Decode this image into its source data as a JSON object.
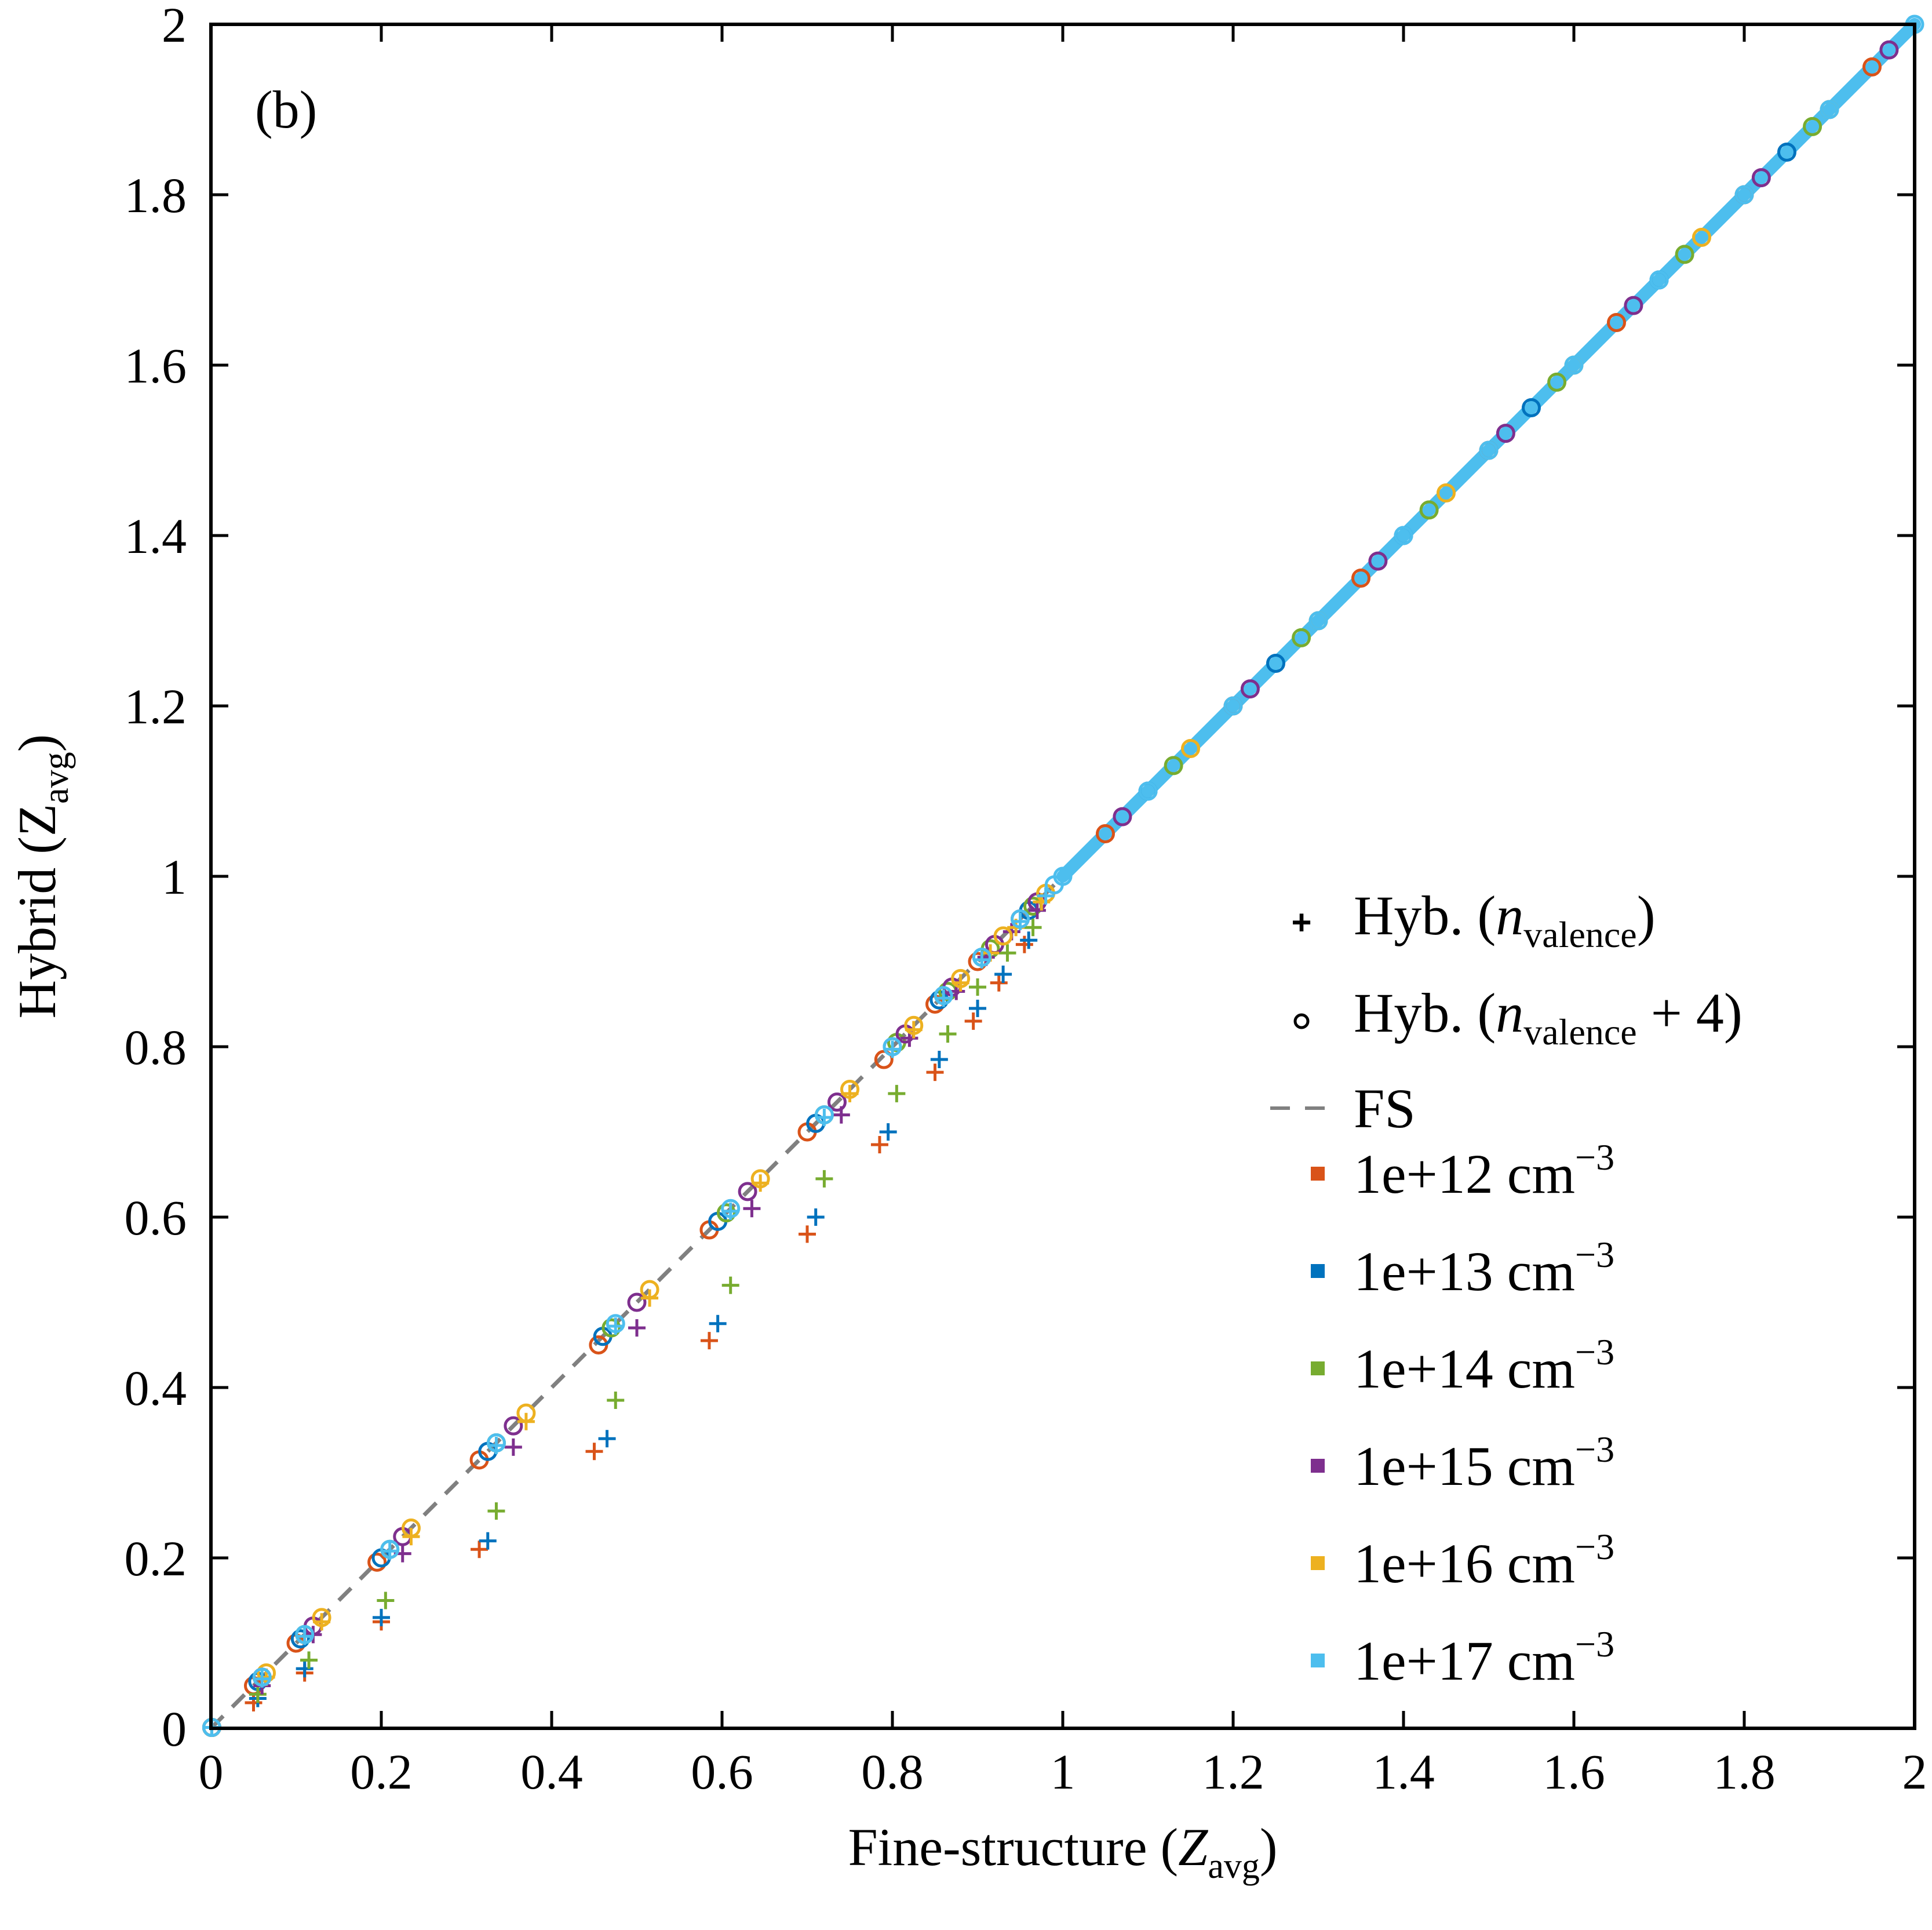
{
  "chart_data": {
    "type": "scatter",
    "panel_label": "(b)",
    "xlabel": {
      "main": "Fine-structure (",
      "sym": "Z",
      "sub": "avg",
      "close": ")"
    },
    "ylabel": {
      "main": "Hybrid (",
      "sym": "Z",
      "sub": "avg",
      "close": ")"
    },
    "xlim": [
      0,
      2
    ],
    "ylim": [
      0,
      2
    ],
    "xticks": [
      0,
      0.2,
      0.4,
      0.6,
      0.8,
      1,
      1.2,
      1.4,
      1.6,
      1.8,
      2
    ],
    "yticks": [
      0,
      0.2,
      0.4,
      0.6,
      0.8,
      1,
      1.2,
      1.4,
      1.6,
      1.8,
      2
    ],
    "xtick_labels": [
      "0",
      "0.2",
      "0.4",
      "0.6",
      "0.8",
      "1",
      "1.2",
      "1.4",
      "1.6",
      "1.8",
      "2"
    ],
    "ytick_labels": [
      "0",
      "0.2",
      "0.4",
      "0.6",
      "0.8",
      "1",
      "1.2",
      "1.4",
      "1.6",
      "1.8",
      "2"
    ],
    "legend": {
      "position": "right-middle",
      "marker_entries": [
        {
          "marker": "plus",
          "text": "Hyb. (",
          "sym": "n",
          "sub": "valence",
          "tail": ")"
        },
        {
          "marker": "circle",
          "text": "Hyb. (",
          "sym": "n",
          "sub": "valence",
          "tail": " + 4)"
        }
      ],
      "line_entry": {
        "text": "FS",
        "color": "#808080"
      },
      "series_entries": [
        {
          "text": "1e+12 cm",
          "sup": "−3",
          "color": "#D95319"
        },
        {
          "text": "1e+13 cm",
          "sup": "−3",
          "color": "#0072BD"
        },
        {
          "text": "1e+14 cm",
          "sup": "−3",
          "color": "#77AC30"
        },
        {
          "text": "1e+15 cm",
          "sup": "−3",
          "color": "#7E2F8E"
        },
        {
          "text": "1e+16 cm",
          "sup": "−3",
          "color": "#EDB120"
        },
        {
          "text": "1e+17 cm",
          "sup": "−3",
          "color": "#4DBEEE"
        }
      ]
    },
    "reference_line": {
      "name": "FS",
      "style": "dashed",
      "color": "#808080",
      "x": [
        0,
        2
      ],
      "y": [
        0,
        2
      ]
    },
    "series": [
      {
        "name": "1e+12 cm−3",
        "color": "#D95319",
        "plus": {
          "x": [
            0.001,
            0.05,
            0.11,
            0.2,
            0.315,
            0.45,
            0.585,
            0.7,
            0.785,
            0.85,
            0.895,
            0.925,
            0.955
          ],
          "y": [
            0.001,
            0.03,
            0.065,
            0.125,
            0.21,
            0.325,
            0.455,
            0.58,
            0.685,
            0.77,
            0.83,
            0.875,
            0.92
          ]
        },
        "circle": {
          "x": [
            0.001,
            0.05,
            0.1,
            0.195,
            0.315,
            0.455,
            0.585,
            0.7,
            0.79,
            0.85,
            0.9,
            0.95,
            1.05,
            1.2,
            1.35,
            1.5,
            1.65,
            1.8,
            1.95
          ],
          "y": [
            0.001,
            0.05,
            0.1,
            0.195,
            0.315,
            0.45,
            0.585,
            0.7,
            0.785,
            0.85,
            0.9,
            0.95,
            1.05,
            1.2,
            1.35,
            1.5,
            1.65,
            1.8,
            1.95
          ]
        }
      },
      {
        "name": "1e+13 cm−3",
        "color": "#0072BD",
        "plus": {
          "x": [
            0.001,
            0.055,
            0.11,
            0.2,
            0.325,
            0.465,
            0.595,
            0.71,
            0.795,
            0.855,
            0.9,
            0.93,
            0.96
          ],
          "y": [
            0.001,
            0.035,
            0.07,
            0.13,
            0.22,
            0.34,
            0.475,
            0.6,
            0.7,
            0.785,
            0.845,
            0.885,
            0.925
          ]
        },
        "circle": {
          "x": [
            0.001,
            0.055,
            0.105,
            0.2,
            0.325,
            0.46,
            0.595,
            0.71,
            0.8,
            0.855,
            0.905,
            0.96,
            1.1,
            1.25,
            1.4,
            1.55,
            1.7,
            1.85
          ],
          "y": [
            0.001,
            0.055,
            0.105,
            0.2,
            0.325,
            0.46,
            0.595,
            0.71,
            0.8,
            0.855,
            0.905,
            0.96,
            1.1,
            1.25,
            1.4,
            1.55,
            1.7,
            1.85
          ]
        }
      },
      {
        "name": "1e+14 cm−3",
        "color": "#77AC30",
        "plus": {
          "x": [
            0.001,
            0.055,
            0.115,
            0.205,
            0.335,
            0.475,
            0.61,
            0.72,
            0.805,
            0.865,
            0.9,
            0.935,
            0.965
          ],
          "y": [
            0.001,
            0.04,
            0.08,
            0.15,
            0.255,
            0.385,
            0.52,
            0.645,
            0.745,
            0.815,
            0.87,
            0.91,
            0.94
          ]
        },
        "circle": {
          "x": [
            0.001,
            0.06,
            0.11,
            0.21,
            0.335,
            0.47,
            0.605,
            0.72,
            0.805,
            0.865,
            0.915,
            0.965,
            1.13,
            1.28,
            1.43,
            1.58,
            1.73,
            1.88
          ],
          "y": [
            0.001,
            0.06,
            0.11,
            0.21,
            0.335,
            0.47,
            0.605,
            0.72,
            0.805,
            0.865,
            0.915,
            0.965,
            1.13,
            1.28,
            1.43,
            1.58,
            1.73,
            1.88
          ]
        }
      },
      {
        "name": "1e+15 cm−3",
        "color": "#7E2F8E",
        "plus": {
          "x": [
            0.001,
            0.06,
            0.12,
            0.225,
            0.355,
            0.5,
            0.635,
            0.74,
            0.82,
            0.875,
            0.91,
            0.94,
            0.97
          ],
          "y": [
            0.001,
            0.05,
            0.11,
            0.205,
            0.33,
            0.47,
            0.61,
            0.72,
            0.81,
            0.865,
            0.905,
            0.935,
            0.96
          ]
        },
        "circle": {
          "x": [
            0.001,
            0.06,
            0.12,
            0.225,
            0.355,
            0.5,
            0.63,
            0.735,
            0.815,
            0.87,
            0.92,
            0.97,
            1.07,
            1.22,
            1.37,
            1.52,
            1.67,
            1.82,
            1.97
          ],
          "y": [
            0.001,
            0.06,
            0.12,
            0.225,
            0.355,
            0.5,
            0.63,
            0.735,
            0.815,
            0.87,
            0.92,
            0.97,
            1.07,
            1.22,
            1.37,
            1.52,
            1.67,
            1.82,
            1.97
          ]
        }
      },
      {
        "name": "1e+16 cm−3",
        "color": "#EDB120",
        "plus": {
          "x": [
            0.001,
            0.065,
            0.13,
            0.235,
            0.37,
            0.515,
            0.645,
            0.75,
            0.825,
            0.88,
            0.915,
            0.945,
            0.975
          ],
          "y": [
            0.001,
            0.06,
            0.125,
            0.225,
            0.36,
            0.505,
            0.64,
            0.745,
            0.82,
            0.875,
            0.91,
            0.94,
            0.97
          ]
        },
        "circle": {
          "x": [
            0.001,
            0.065,
            0.13,
            0.235,
            0.37,
            0.515,
            0.645,
            0.75,
            0.825,
            0.88,
            0.93,
            0.98,
            1.15,
            1.3,
            1.45,
            1.6,
            1.75,
            1.9
          ],
          "y": [
            0.001,
            0.065,
            0.13,
            0.235,
            0.37,
            0.515,
            0.645,
            0.75,
            0.825,
            0.88,
            0.93,
            0.98,
            1.15,
            1.3,
            1.45,
            1.6,
            1.75,
            1.9
          ]
        }
      },
      {
        "name": "1e+17 cm−3",
        "color": "#4DBEEE",
        "plus": {
          "x": [
            0.001,
            0.06,
            0.11,
            0.21,
            0.335,
            0.475,
            0.61,
            0.72,
            0.8,
            0.86,
            0.905,
            0.95,
            0.98
          ],
          "y": [
            0.001,
            0.058,
            0.108,
            0.208,
            0.332,
            0.472,
            0.607,
            0.717,
            0.797,
            0.857,
            0.902,
            0.947,
            0.977
          ]
        },
        "circle": {
          "x": [
            0.001,
            0.06,
            0.11,
            0.21,
            0.335,
            0.475,
            0.61,
            0.72,
            0.8,
            0.86,
            0.905,
            0.95,
            0.99,
            1.0,
            1.1,
            1.2,
            1.3,
            1.4,
            1.5,
            1.6,
            1.7,
            1.8,
            1.9,
            2.0
          ],
          "y": [
            0.001,
            0.06,
            0.11,
            0.21,
            0.335,
            0.475,
            0.61,
            0.72,
            0.8,
            0.86,
            0.905,
            0.95,
            0.99,
            1.0,
            1.1,
            1.2,
            1.3,
            1.4,
            1.5,
            1.6,
            1.7,
            1.8,
            1.9,
            2.0
          ]
        }
      }
    ]
  }
}
